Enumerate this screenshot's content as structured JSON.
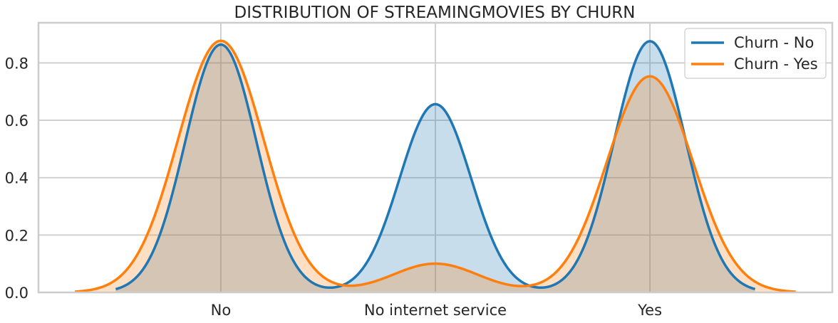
{
  "chart_data": {
    "type": "area",
    "title": "DISTRIBUTION OF STREAMINGMOVIES BY CHURN",
    "xlabel": "",
    "ylabel": "",
    "categories": [
      "No",
      "No internet service",
      "Yes"
    ],
    "category_x": [
      0,
      1,
      2
    ],
    "xlim": [
      -0.85,
      2.85
    ],
    "ylim": [
      0,
      0.94
    ],
    "yticks": [
      0.0,
      0.2,
      0.4,
      0.6,
      0.8
    ],
    "ytick_labels": [
      "0.0",
      "0.2",
      "0.4",
      "0.6",
      "0.8"
    ],
    "grid": true,
    "legend_position": "top-right",
    "series": [
      {
        "name": "Churn - No",
        "color": "#1f77b4",
        "fill_color": "#c6d9eb",
        "x_range": [
          -0.49,
          2.49
        ],
        "kde_components": [
          {
            "center": 0,
            "weight": 0.3606,
            "sigma": 0.1665
          },
          {
            "center": 1,
            "weight": 0.2739,
            "sigma": 0.1665
          },
          {
            "center": 2,
            "weight": 0.3655,
            "sigma": 0.1665
          }
        ],
        "peaks": [
          0.864,
          0.657,
          0.895
        ]
      },
      {
        "name": "Churn - Yes",
        "color": "#ff7f0e",
        "fill_color": "#ffd8b6",
        "x_range": [
          -0.68,
          2.68
        ],
        "kde_components": [
          {
            "center": 0,
            "weight": 0.4398,
            "sigma": 0.2
          },
          {
            "center": 1,
            "weight": 0.0503,
            "sigma": 0.2
          },
          {
            "center": 2,
            "weight": 0.3777,
            "sigma": 0.2
          }
        ],
        "peaks": [
          0.873,
          0.105,
          0.76
        ]
      }
    ]
  }
}
